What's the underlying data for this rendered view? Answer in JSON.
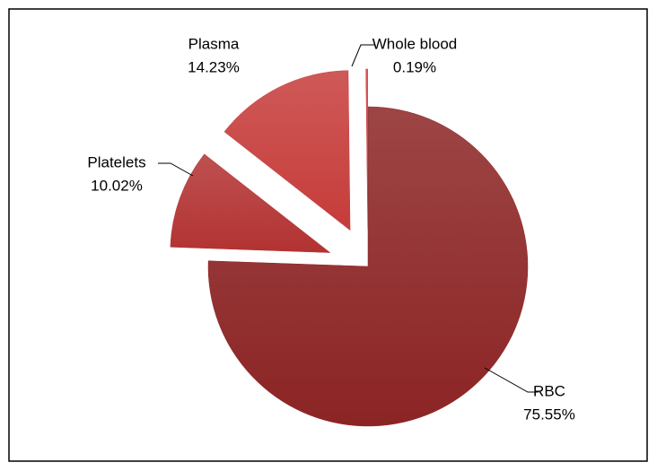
{
  "chart_data": {
    "type": "pie",
    "categories": [
      "RBC",
      "Platelets",
      "Plasma",
      "Whole blood"
    ],
    "values": [
      75.55,
      10.02,
      14.23,
      0.19
    ],
    "value_labels": [
      "75.55%",
      "10.02%",
      "14.23%",
      "0.19%"
    ],
    "colors": [
      "#8c2424",
      "#b33232",
      "#c63c3a",
      "#cf4240"
    ]
  }
}
